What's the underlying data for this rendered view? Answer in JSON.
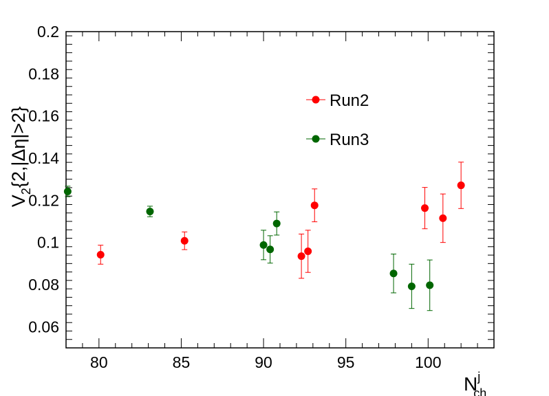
{
  "chart_data": {
    "type": "scatter",
    "xlim": [
      78,
      104
    ],
    "ylim": [
      0.05,
      0.2
    ],
    "x_ticks": [
      80,
      85,
      90,
      95,
      100
    ],
    "y_ticks": [
      0.06,
      0.08,
      0.1,
      0.12,
      0.14,
      0.16,
      0.18,
      0.2
    ],
    "x_tick_labels": [
      "80",
      "85",
      "90",
      "95",
      "100"
    ],
    "y_tick_labels": [
      "0.06",
      "0.08",
      "0.1",
      "0.12",
      "0.14",
      "0.16",
      "0.18",
      "0.2"
    ],
    "xlabel": {
      "main": "N",
      "sup": "j",
      "sub": "ch"
    },
    "ylabel": "V",
    "ylabel_sub": "2",
    "ylabel_rest": "{2,|Δη",
    "ylabel_star_sup": "*",
    "ylabel_eta_sup": "*",
    "ylabel_tail": "|>2}",
    "legend_position": "top-center",
    "grid": false,
    "series": [
      {
        "name": "Run2",
        "color": "#ff0000",
        "points": [
          {
            "x": 80.1,
            "y": 0.0942,
            "err": 0.0045
          },
          {
            "x": 85.2,
            "y": 0.1008,
            "err": 0.0042
          },
          {
            "x": 92.3,
            "y": 0.0935,
            "err": 0.0105
          },
          {
            "x": 92.7,
            "y": 0.0958,
            "err": 0.01
          },
          {
            "x": 93.1,
            "y": 0.1176,
            "err": 0.0078
          },
          {
            "x": 99.8,
            "y": 0.1163,
            "err": 0.0098
          },
          {
            "x": 100.9,
            "y": 0.1115,
            "err": 0.0115
          },
          {
            "x": 102.0,
            "y": 0.1271,
            "err": 0.011
          }
        ]
      },
      {
        "name": "Run3",
        "color": "#006600",
        "points": [
          {
            "x": 78.1,
            "y": 0.1242,
            "err": 0.0025
          },
          {
            "x": 83.1,
            "y": 0.1147,
            "err": 0.0025
          },
          {
            "x": 90.0,
            "y": 0.0988,
            "err": 0.007
          },
          {
            "x": 90.4,
            "y": 0.0967,
            "err": 0.0065
          },
          {
            "x": 90.8,
            "y": 0.109,
            "err": 0.0055
          },
          {
            "x": 97.9,
            "y": 0.0853,
            "err": 0.0092
          },
          {
            "x": 99.0,
            "y": 0.0792,
            "err": 0.0105
          },
          {
            "x": 100.1,
            "y": 0.0797,
            "err": 0.012
          }
        ]
      }
    ]
  }
}
